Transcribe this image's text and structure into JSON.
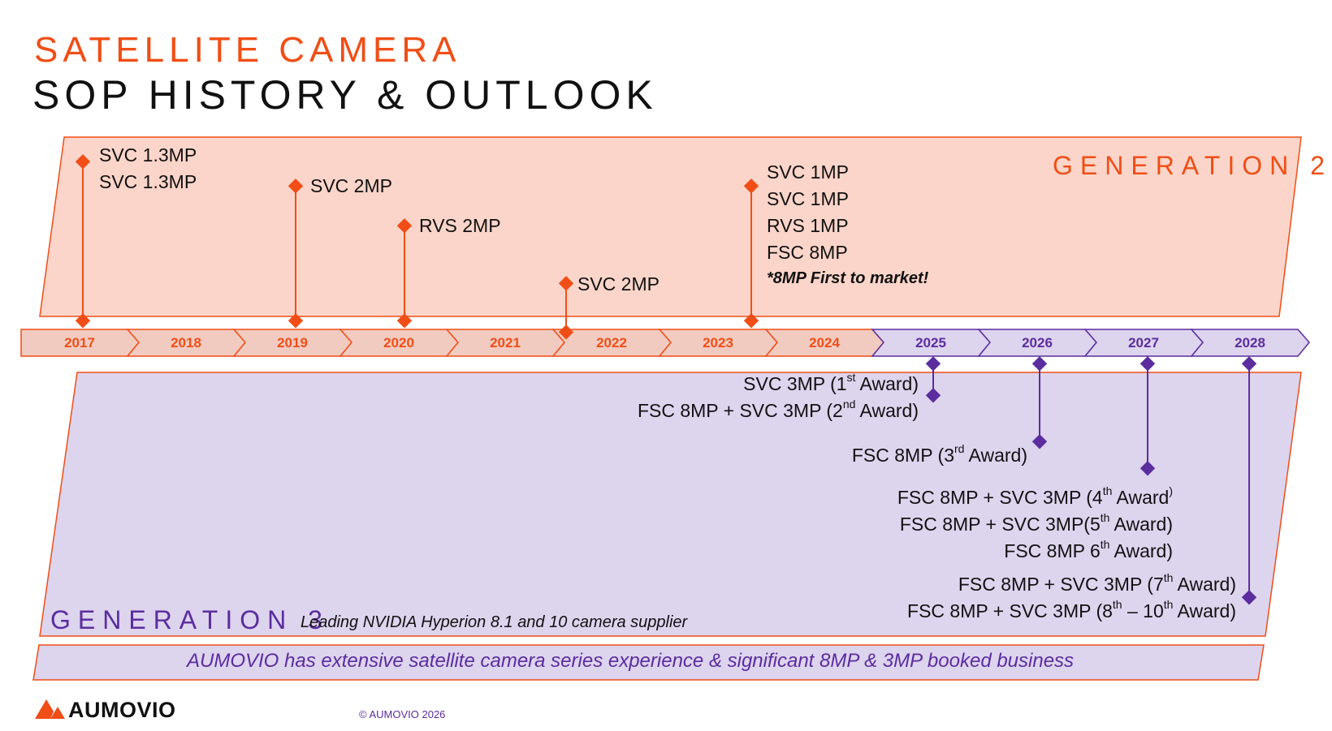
{
  "title": {
    "line1": "SATELLITE CAMERA",
    "line2": "SOP HISTORY & OUTLOOK"
  },
  "generation2_label": "GENERATION 2",
  "generation3": {
    "label": "GENERATION 3",
    "subtitle": "Leading NVIDIA Hyperion 8.1 and 10 camera supplier"
  },
  "years": [
    "2017",
    "2018",
    "2019",
    "2020",
    "2021",
    "2022",
    "2023",
    "2024",
    "2025",
    "2026",
    "2027",
    "2028"
  ],
  "gen2_events": [
    {
      "year": "2017",
      "lines": [
        "SVC 1.3MP",
        "SVC 1.3MP"
      ]
    },
    {
      "year": "2019",
      "lines": [
        "SVC 2MP"
      ]
    },
    {
      "year": "2020",
      "lines": [
        "RVS 2MP"
      ]
    },
    {
      "year": "2021",
      "lines": [
        "SVC 2MP"
      ]
    },
    {
      "year": "2023",
      "lines": [
        "SVC 1MP",
        "SVC 1MP",
        "RVS 1MP",
        "FSC 8MP"
      ],
      "note": "*8MP First to market!"
    }
  ],
  "gen3_events": [
    {
      "year": "2025",
      "lines": [
        "SVC 3MP (1st Award)",
        "FSC 8MP + SVC 3MP (2nd Award)"
      ]
    },
    {
      "year": "2026",
      "lines": [
        "FSC 8MP (3rd Award)"
      ]
    },
    {
      "year": "2027",
      "lines": [
        "FSC 8MP + SVC 3MP (4th Award)",
        "FSC 8MP + SVC 3MP(5th Award)",
        "FSC 8MP 6th Award)"
      ]
    },
    {
      "year": "2028",
      "lines": [
        "FSC 8MP + SVC 3MP (7th Award)",
        "FSC 8MP + SVC 3MP (8th – 10th Award)"
      ]
    }
  ],
  "g3": {
    "a1": {
      "pre": "SVC 3MP (1",
      "sup": "st",
      "post": " Award)"
    },
    "a2": {
      "pre": "FSC 8MP + SVC 3MP (2",
      "sup": "nd",
      "post": " Award)"
    },
    "a3": {
      "pre": "FSC 8MP (3",
      "sup": "rd",
      "post": " Award)"
    },
    "a4": {
      "pre": "FSC 8MP + SVC 3MP (4",
      "sup": "th",
      "post": " Award",
      "tail": ")"
    },
    "a5": {
      "pre": "FSC 8MP + SVC 3MP(5",
      "sup": "th",
      "post": " Award)"
    },
    "a6": {
      "pre": "FSC 8MP 6",
      "sup": "th",
      "post": " Award)"
    },
    "a7": {
      "pre": "FSC 8MP + SVC 3MP (7",
      "sup": "th",
      "post": " Award)"
    },
    "a8": {
      "pre": "FSC 8MP + SVC 3MP (8",
      "sup": "th",
      "mid": " – 10",
      "sup2": "th",
      "post": " Award)"
    }
  },
  "banner": "AUMOVIO has extensive satellite camera series experience & significant 8MP & 3MP booked business",
  "footer": {
    "brand": "AUMOVIO",
    "copyright": "© AUMOVIO 2026"
  },
  "colors": {
    "orange": "#f04e16",
    "purple": "#5b2d9e",
    "gen2_fill": "#fbd5c9",
    "gen3_fill": "#ddd4ee",
    "past_segment": "#f1cbc0",
    "future_segment": "#ddd4ee"
  }
}
